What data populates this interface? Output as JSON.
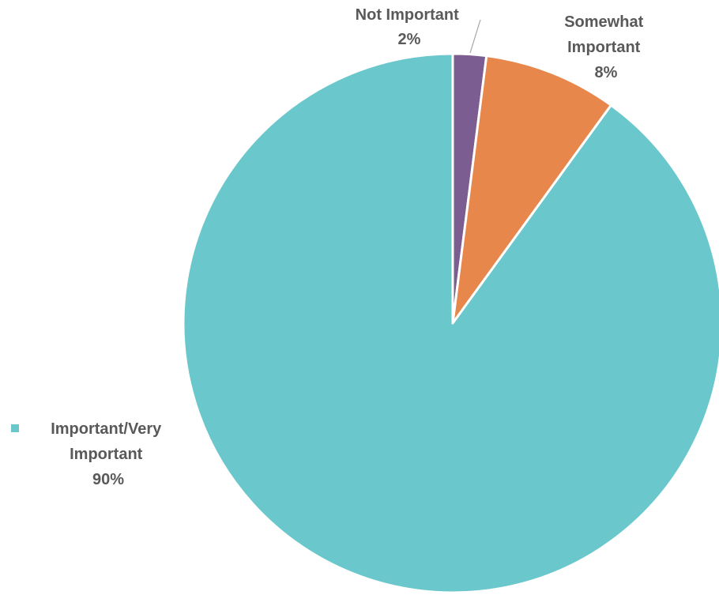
{
  "chart_data": {
    "type": "pie",
    "title": "",
    "categories": [
      "Not Important",
      "Somewhat Important",
      "Important/Very Important"
    ],
    "values": [
      2,
      8,
      90
    ],
    "unit": "%",
    "data_labels": [
      {
        "lines": [
          "Not Important",
          "2%"
        ]
      },
      {
        "lines": [
          "Somewhat",
          "Important",
          "8%"
        ]
      },
      {
        "lines": [
          "Important/Very",
          "Important",
          "90%"
        ]
      }
    ],
    "colors": [
      "#7B5D92",
      "#E8874C",
      "#6AC7CB"
    ],
    "slice_border_color": "#ffffff",
    "start_angle": "12 o'clock",
    "direction": "clockwise",
    "legend": {
      "placement": "left",
      "entries": [
        "Important/Very Important"
      ],
      "marker_color": "#6AC7CB"
    }
  }
}
